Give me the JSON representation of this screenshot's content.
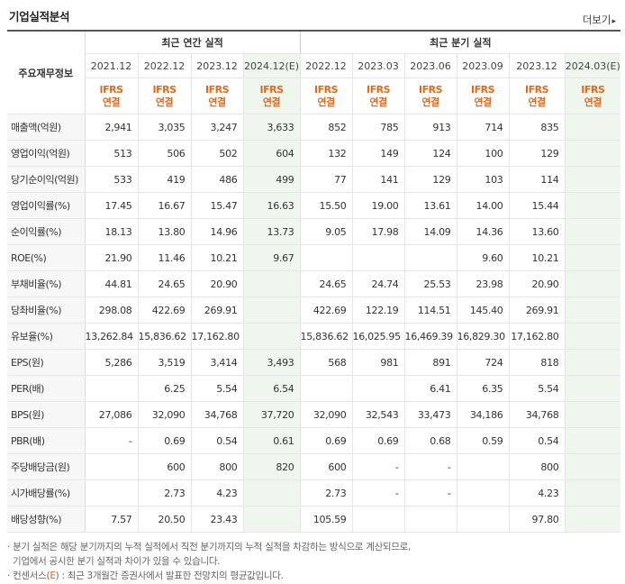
{
  "header": {
    "title": "기업실적분석",
    "more_label": "더보기"
  },
  "table": {
    "corner_label": "주요재무정보",
    "annual_group_label": "최근 연간 실적",
    "quarter_group_label": "최근 분기 실적",
    "annual_periods": [
      "2021.12",
      "2022.12",
      "2023.12",
      "2024.12(E)"
    ],
    "quarter_periods": [
      "2022.12",
      "2023.03",
      "2023.06",
      "2023.09",
      "2023.12",
      "2024.03(E)"
    ],
    "ifrs_line1": "IFRS",
    "ifrs_line2": "연결",
    "rows": [
      {
        "label": "매출액(억원)",
        "values": [
          "2,941",
          "3,035",
          "3,247",
          "3,633",
          "852",
          "785",
          "913",
          "714",
          "835",
          ""
        ]
      },
      {
        "label": "영업이익(억원)",
        "values": [
          "513",
          "506",
          "502",
          "604",
          "132",
          "149",
          "124",
          "100",
          "129",
          ""
        ]
      },
      {
        "label": "당기순이익(억원)",
        "values": [
          "533",
          "419",
          "486",
          "499",
          "77",
          "141",
          "129",
          "103",
          "114",
          ""
        ]
      },
      {
        "label": "영업이익률(%)",
        "values": [
          "17.45",
          "16.67",
          "15.47",
          "16.63",
          "15.50",
          "19.00",
          "13.61",
          "14.00",
          "15.44",
          ""
        ]
      },
      {
        "label": "순이익률(%)",
        "values": [
          "18.13",
          "13.80",
          "14.96",
          "13.73",
          "9.05",
          "17.98",
          "14.09",
          "14.36",
          "13.60",
          ""
        ]
      },
      {
        "label": "ROE(%)",
        "values": [
          "21.90",
          "11.46",
          "10.21",
          "9.67",
          "",
          "",
          "",
          "9.60",
          "10.21",
          ""
        ]
      },
      {
        "label": "부채비율(%)",
        "values": [
          "44.81",
          "24.65",
          "20.90",
          "",
          "24.65",
          "24.74",
          "25.53",
          "23.98",
          "20.90",
          ""
        ]
      },
      {
        "label": "당좌비율(%)",
        "values": [
          "298.08",
          "422.69",
          "269.91",
          "",
          "422.69",
          "122.19",
          "114.51",
          "145.40",
          "269.91",
          ""
        ]
      },
      {
        "label": "유보율(%)",
        "values": [
          "13,262.84",
          "15,836.62",
          "17,162.80",
          "",
          "15,836.62",
          "16,025.95",
          "16,469.39",
          "16,829.30",
          "17,162.80",
          ""
        ]
      },
      {
        "label": "EPS(원)",
        "values": [
          "5,286",
          "3,519",
          "3,414",
          "3,493",
          "568",
          "981",
          "891",
          "724",
          "818",
          ""
        ]
      },
      {
        "label": "PER(배)",
        "values": [
          "",
          "6.25",
          "5.54",
          "6.54",
          "",
          "",
          "6.41",
          "6.35",
          "5.54",
          ""
        ]
      },
      {
        "label": "BPS(원)",
        "values": [
          "27,086",
          "32,090",
          "34,768",
          "37,720",
          "32,090",
          "32,543",
          "33,473",
          "34,186",
          "34,768",
          ""
        ]
      },
      {
        "label": "PBR(배)",
        "values": [
          "-",
          "0.69",
          "0.54",
          "0.61",
          "0.69",
          "0.69",
          "0.68",
          "0.59",
          "0.54",
          ""
        ]
      },
      {
        "label": "주당배당금(원)",
        "values": [
          "",
          "600",
          "800",
          "820",
          "600",
          "-",
          "-",
          "",
          "800",
          ""
        ]
      },
      {
        "label": "시가배당률(%)",
        "values": [
          "",
          "2.73",
          "4.23",
          "",
          "2.73",
          "-",
          "-",
          "",
          "4.23",
          ""
        ]
      },
      {
        "label": "배당성향(%)",
        "values": [
          "7.57",
          "20.50",
          "23.43",
          "",
          "105.59",
          "",
          "",
          "",
          "97.80",
          ""
        ]
      }
    ]
  },
  "notes": {
    "line1": "· 분기 실적은 해당 분기까지의 누적 실적에서 직전 분기까지의 누적 실적을 차감하는 방식으로 계산되므로,",
    "line2": "기업에서 공시한 분기 실적과 차이가 있을 수 있습니다.",
    "line3_prefix": "· 컨센서스(",
    "line3_e": "E",
    "line3_suffix": ") : 최근 3개월간 증권사에서 발표한 전망치의 평균값입니다."
  },
  "colors": {
    "accent_orange": "#e36a1a",
    "estimate_bg": "#eef6ee"
  }
}
